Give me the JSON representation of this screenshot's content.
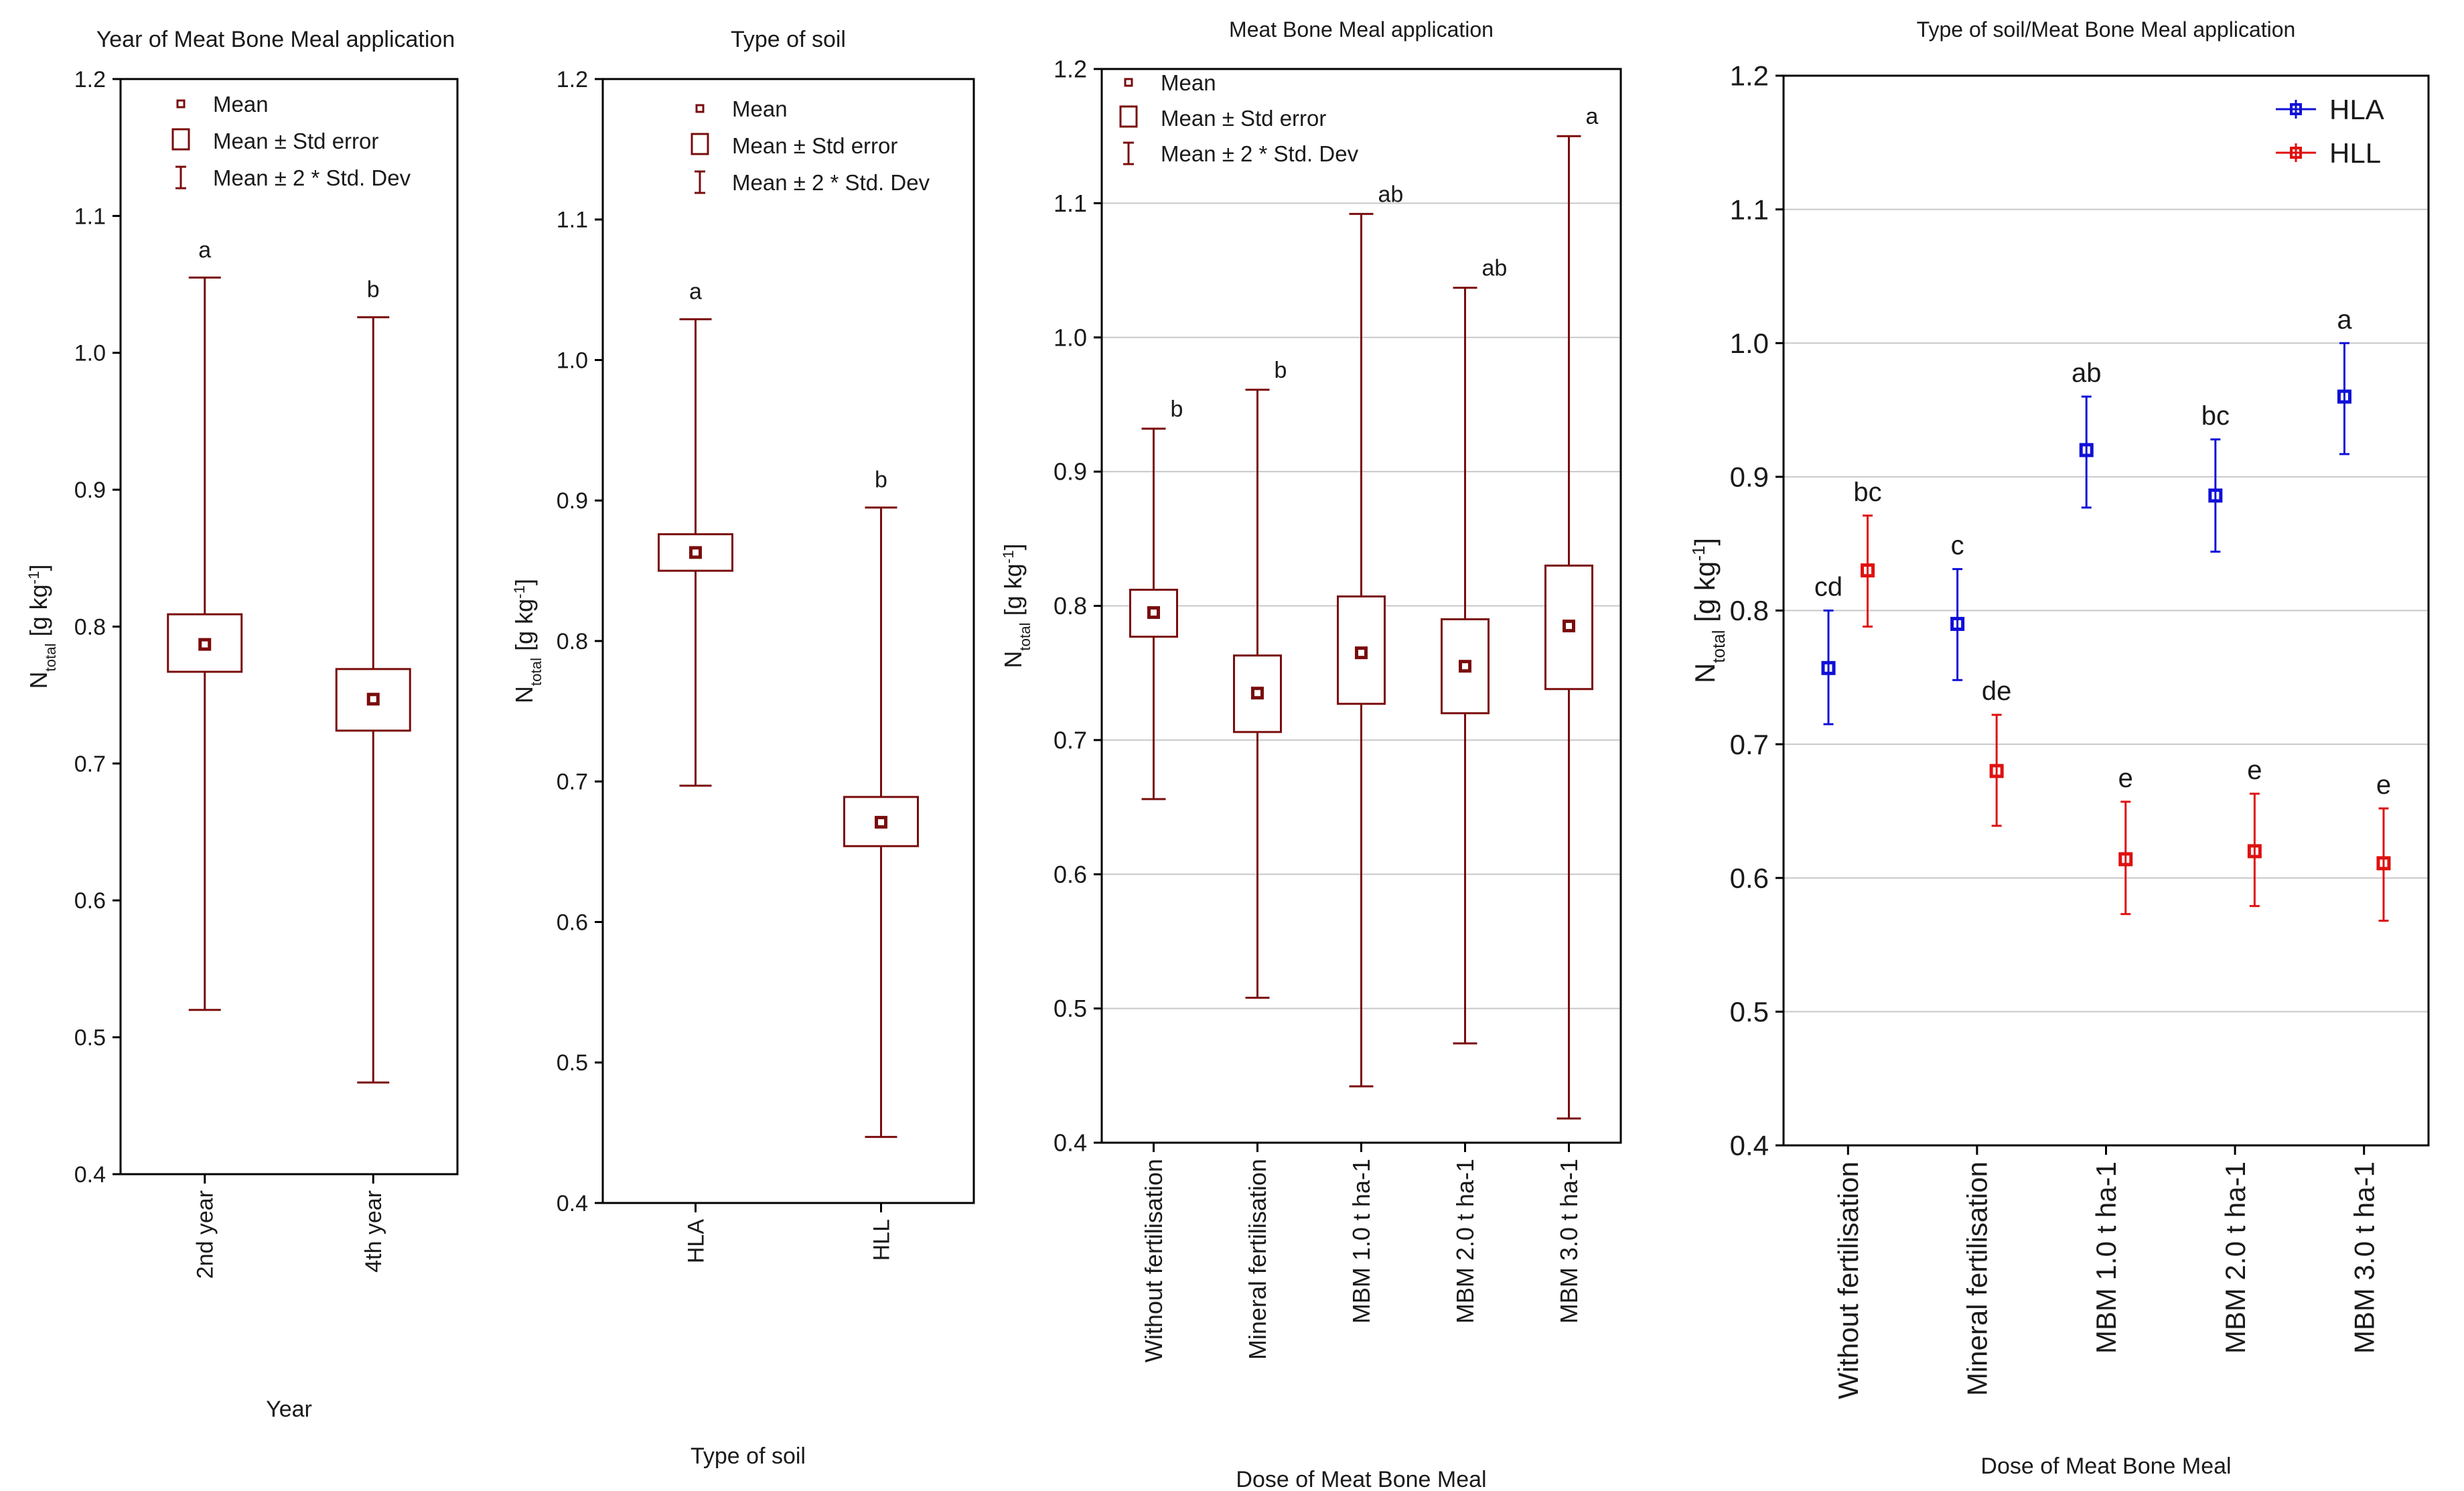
{
  "figure": {
    "panels": [
      {
        "title": "Year of Meat Bone Meal application",
        "ylabel": "N_total [g kg-1]",
        "xlabel": "Year"
      },
      {
        "title": "Type of soil",
        "ylabel": "N_total [g kg-1]",
        "xlabel": "Type of soil"
      },
      {
        "title": "Meat Bone Meal application",
        "ylabel": "N_total [g kg-1]",
        "xlabel": "Dose of Meat Bone Meal"
      },
      {
        "title": "Type of soil/Meat Bone Meal application",
        "ylabel": "N_total [g kg-1]",
        "xlabel": "Dose of Meat Bone Meal"
      }
    ]
  },
  "chart_data": [
    {
      "type": "boxplot",
      "title": "Year of Meat Bone Meal application",
      "xlabel": "Year",
      "ylabel": "N_total [g kg-1]",
      "ylim": [
        0.4,
        1.2
      ],
      "yticks": [
        "0.4",
        "0.5",
        "0.6",
        "0.7",
        "0.8",
        "0.9",
        "1.0",
        "1.1",
        "1.2"
      ],
      "legend": [
        "Mean",
        "Mean ± Std error",
        "Mean ± 2 * Std. Dev"
      ],
      "categories": [
        "2nd year",
        "4th year"
      ],
      "mean": [
        0.787,
        0.747
      ],
      "se_low": [
        0.767,
        0.724
      ],
      "se_high": [
        0.809,
        0.769
      ],
      "sd_low": [
        0.52,
        0.467
      ],
      "sd_high": [
        1.055,
        1.026
      ],
      "letters": [
        "a",
        "b"
      ]
    },
    {
      "type": "boxplot",
      "title": "Type of soil",
      "xlabel": "Type of soil",
      "ylabel": "N_total [g kg-1]",
      "ylim": [
        0.4,
        1.2
      ],
      "yticks": [
        "0.4",
        "0.5",
        "0.6",
        "0.7",
        "0.8",
        "0.9",
        "1.0",
        "1.1",
        "1.2"
      ],
      "legend": [
        "Mean",
        "Mean ± Std error",
        "Mean ± 2 * Std. Dev"
      ],
      "categories": [
        "HLA",
        "HLL"
      ],
      "mean": [
        0.863,
        0.671
      ],
      "se_low": [
        0.85,
        0.654
      ],
      "se_high": [
        0.876,
        0.689
      ],
      "sd_low": [
        0.697,
        0.447
      ],
      "sd_high": [
        1.029,
        0.895
      ],
      "letters": [
        "a",
        "b"
      ]
    },
    {
      "type": "boxplot",
      "title": "Meat Bone Meal application",
      "xlabel": "Dose of Meat Bone Meal",
      "ylabel": "N_total [g kg-1]",
      "ylim": [
        0.4,
        1.2
      ],
      "yticks": [
        "0.4",
        "0.5",
        "0.6",
        "0.7",
        "0.8",
        "0.9",
        "1.0",
        "1.1",
        "1.2"
      ],
      "legend": [
        "Mean",
        "Mean ± Std error",
        "Mean ± 2 * Std. Dev"
      ],
      "categories": [
        "Without fertilisation",
        "Mineral fertilisation",
        "MBM 1.0 t ha-1",
        "MBM 2.0 t ha-1",
        "MBM 3.0 t ha-1"
      ],
      "mean": [
        0.795,
        0.735,
        0.765,
        0.755,
        0.785
      ],
      "se_low": [
        0.777,
        0.706,
        0.727,
        0.72,
        0.738
      ],
      "se_high": [
        0.812,
        0.763,
        0.807,
        0.79,
        0.83
      ],
      "sd_low": [
        0.656,
        0.508,
        0.442,
        0.474,
        0.418
      ],
      "sd_high": [
        0.932,
        0.961,
        1.092,
        1.037,
        1.15
      ],
      "letters": [
        "b",
        "b",
        "ab",
        "ab",
        "a"
      ]
    },
    {
      "type": "errorbar",
      "title": "Type of soil/Meat Bone Meal application",
      "xlabel": "Dose of Meat Bone Meal",
      "ylabel": "N_total [g kg-1]",
      "ylim": [
        0.4,
        1.2
      ],
      "yticks": [
        "0.4",
        "0.5",
        "0.6",
        "0.7",
        "0.8",
        "0.9",
        "1.0",
        "1.1",
        "1.2"
      ],
      "categories": [
        "Without fertilisation",
        "Mineral fertilisation",
        "MBM 1.0 t ha-1",
        "MBM 2.0 t ha-1",
        "MBM 3.0 t ha-1"
      ],
      "series": [
        {
          "name": "HLA",
          "color": "#1010d8",
          "values": [
            0.757,
            0.79,
            0.92,
            0.886,
            0.96
          ],
          "err_low": [
            0.715,
            0.748,
            0.877,
            0.844,
            0.917
          ],
          "err_high": [
            0.8,
            0.831,
            0.96,
            0.928,
            1.0
          ],
          "letters": [
            "cd",
            "c",
            "ab",
            "bc",
            "a"
          ]
        },
        {
          "name": "HLL",
          "color": "#e01010",
          "values": [
            0.83,
            0.68,
            0.614,
            0.62,
            0.611
          ],
          "err_low": [
            0.788,
            0.639,
            0.573,
            0.579,
            0.568
          ],
          "err_high": [
            0.871,
            0.722,
            0.657,
            0.663,
            0.652
          ],
          "letters": [
            "bc",
            "de",
            "e",
            "e",
            "e"
          ]
        }
      ]
    }
  ]
}
